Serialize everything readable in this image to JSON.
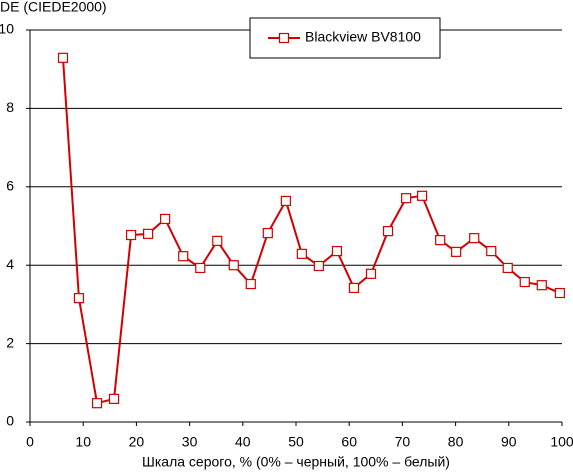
{
  "chart_data": {
    "type": "line",
    "y_label": "DE (CIEDE2000)",
    "x_label": "Шкала серого, % (0% – черный, 100% – белый)",
    "x": [
      6.2,
      9.2,
      12.6,
      15.8,
      19.0,
      22.2,
      25.4,
      28.8,
      32.0,
      35.2,
      38.3,
      41.5,
      44.7,
      48.1,
      51.1,
      54.3,
      57.7,
      60.9,
      64.1,
      67.3,
      70.7,
      73.7,
      77.1,
      80.1,
      83.5,
      86.7,
      89.8,
      93.0,
      96.2,
      99.6
    ],
    "series": [
      {
        "name": "Blackview BV8100",
        "color": "#d40000",
        "values": [
          9.29,
          3.16,
          0.48,
          0.59,
          4.77,
          4.8,
          5.18,
          4.23,
          3.93,
          4.62,
          4.0,
          3.52,
          4.82,
          5.64,
          4.29,
          3.98,
          4.36,
          3.42,
          3.78,
          4.87,
          5.71,
          5.77,
          4.64,
          4.34,
          4.69,
          4.36,
          3.93,
          3.57,
          3.49,
          3.29
        ]
      }
    ],
    "xlim": [
      0,
      100
    ],
    "xticks": [
      0,
      10,
      20,
      30,
      40,
      50,
      60,
      70,
      80,
      90,
      100
    ],
    "ylim": [
      0,
      10
    ],
    "yticks": [
      0,
      2,
      4,
      6,
      8,
      10
    ],
    "grid": true
  }
}
